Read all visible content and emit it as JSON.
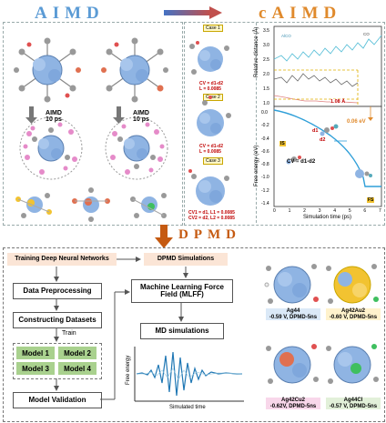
{
  "titles": {
    "aimd": "AIMD",
    "caimd": "cAIMD",
    "dpmd": "DPMD"
  },
  "aimd_panel": {
    "step_label": "AIMD",
    "step_time": "10 ps"
  },
  "caimd_panel": {
    "cases": [
      {
        "label": "Case 1",
        "cv": "CV = d1-d2",
        "l": "L = 0.0085"
      },
      {
        "label": "Case 2",
        "cv": "CV = d1-d2",
        "l": "L = 0.0085"
      },
      {
        "label": "Case 3",
        "cv": "CV1 = d1, L1 = 0.0085",
        "cv2": "CV2 = d2, L2 = 0.0085"
      }
    ],
    "chart": {
      "ylabel_top": "Relative distance (Å)",
      "ylabel_bottom": "Free energy (eV)",
      "xlabel": "Simulation time (ps)",
      "top_ticks": [
        "3.5",
        "3.0",
        "2.5",
        "2.0",
        "1.5",
        "1.0"
      ],
      "bottom_ticks": [
        "0.0",
        "-0.2",
        "-0.4",
        "-0.6",
        "-0.8",
        "-1.0",
        "-1.2",
        "-1.4"
      ],
      "x_ticks": [
        "0",
        "1",
        "2",
        "3",
        "4",
        "5",
        "6",
        "7"
      ],
      "annot_distance": "1.08 Å",
      "annot_energy": "0.06 eV",
      "cv_label": "CV = d1-d2",
      "is_label": "IS",
      "fs_label": "FS",
      "d1": "d1",
      "d2": "d2",
      "legend_top": "AlCO",
      "legend_right": "CO",
      "legend_mid": "AlCO"
    }
  },
  "dpmd": {
    "training_header": "Training Deep Neural Networks",
    "simulations_header": "DPMD Simulations",
    "steps": {
      "preprocess": "Data Preprocessing",
      "datasets": "Constructing Datasets",
      "train": "Train",
      "validation": "Model Validation"
    },
    "models": [
      "Model 1",
      "Model 2",
      "Model 3",
      "Model 4"
    ],
    "mlff": "Machine Learning Force Field (MLFF)",
    "md": "MD simulations",
    "plot": {
      "ylabel": "Free energy",
      "xlabel": "Simulated time"
    },
    "structures": [
      {
        "name": "Ag44",
        "caption": "-0.59 V, DPMD-5ns"
      },
      {
        "name": "Ag42Au2",
        "caption": "-0.60 V, DPMD-5ns"
      },
      {
        "name": "Ag42Cu2",
        "caption": "-0.62V, DPMD-5ns"
      },
      {
        "name": "Ag44Cl",
        "caption": "-0.57 V, DPMD-5ns"
      }
    ]
  },
  "colors": {
    "title_blue": "#5b9bd5",
    "title_orange": "#e08a2c",
    "dpmd_orange": "#c55a11",
    "model_green": "#a9d18e",
    "header_bg": "#fbe5d6",
    "atom_blue": "#8fb4e3",
    "atom_pink": "#e58bc9",
    "curve_blue": "#2f9fd8"
  }
}
